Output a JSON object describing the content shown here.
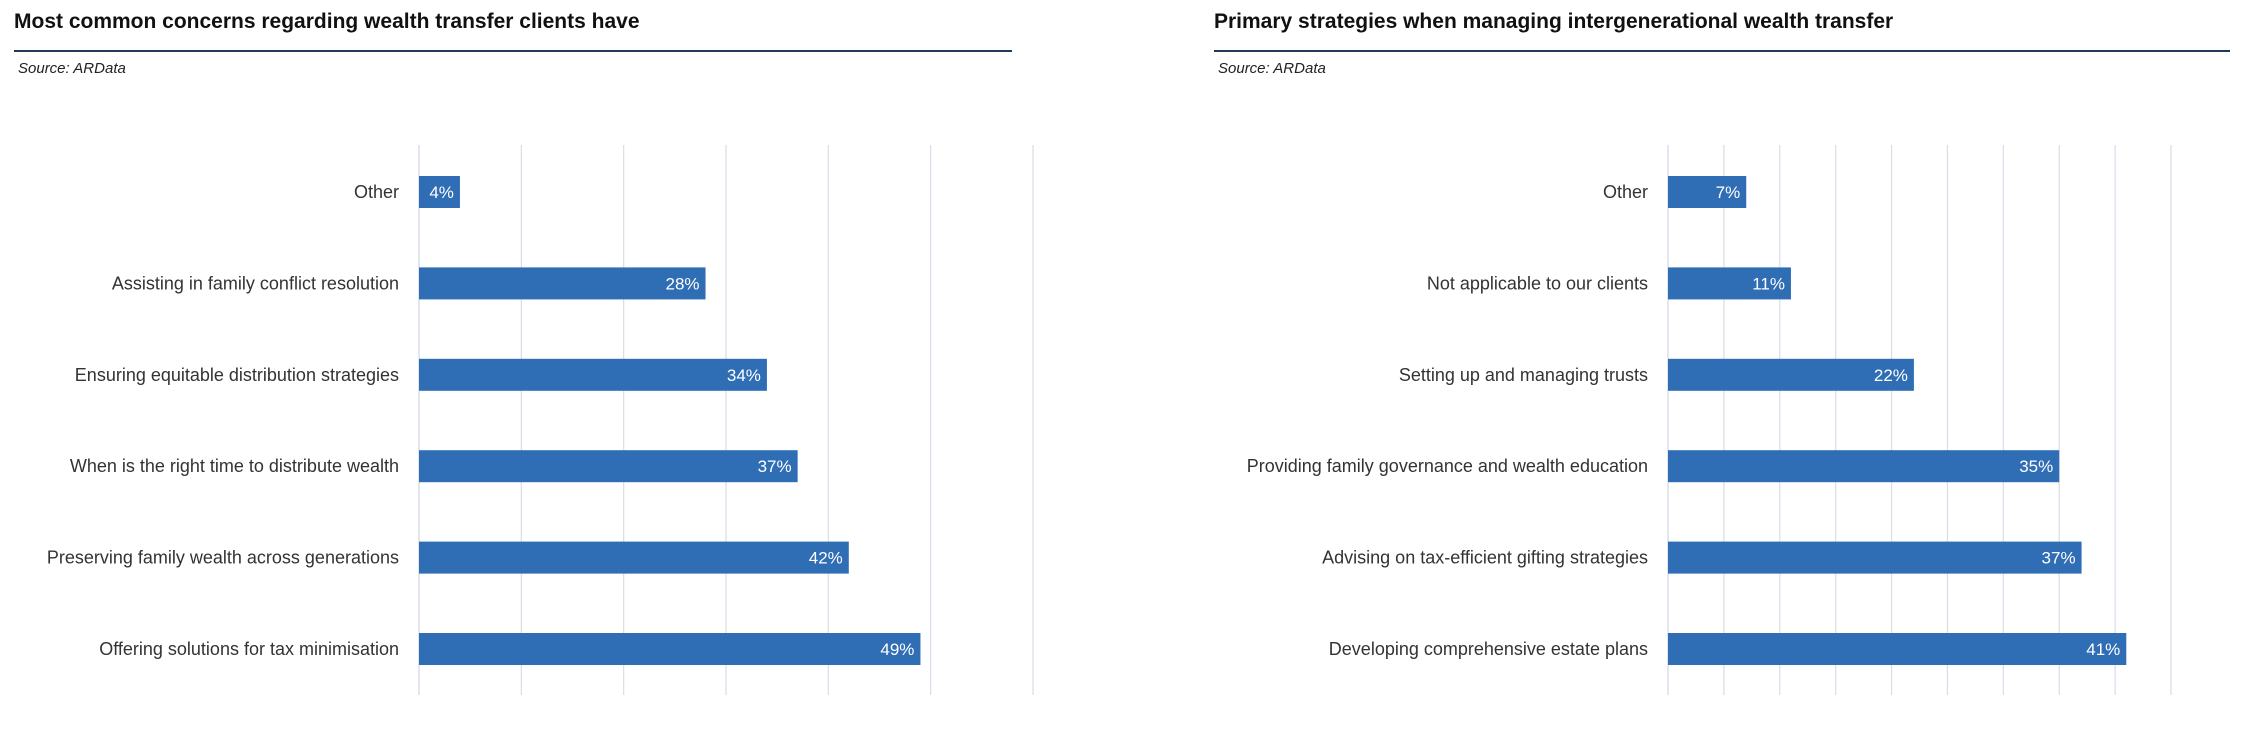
{
  "chart_data": [
    {
      "type": "bar",
      "orientation": "horizontal",
      "title": "Most common concerns regarding wealth transfer clients have",
      "source": "Source: ARData",
      "categories": [
        "Other",
        "Assisting in family conflict resolution",
        "Ensuring equitable distribution strategies",
        "When is the right time to distribute wealth",
        "Preserving family wealth across generations",
        "Offering solutions for tax minimisation"
      ],
      "values": [
        4,
        28,
        34,
        37,
        42,
        49
      ],
      "value_labels": [
        "4%",
        "28%",
        "34%",
        "37%",
        "42%",
        "49%"
      ],
      "xlim": [
        0,
        60
      ],
      "x_gridline_step": 10,
      "grid": true,
      "bar_color": "#2f6db5",
      "gridline_color": "#d9dde8"
    },
    {
      "type": "bar",
      "orientation": "horizontal",
      "title": "Primary strategies when managing intergenerational wealth transfer",
      "source": "Source: ARData",
      "categories": [
        "Other",
        "Not applicable to our clients",
        "Setting up and managing trusts",
        "Providing family governance and wealth education",
        "Advising on tax-efficient gifting strategies",
        "Developing comprehensive estate plans"
      ],
      "values": [
        7,
        11,
        22,
        35,
        37,
        41
      ],
      "value_labels": [
        "7%",
        "11%",
        "22%",
        "35%",
        "37%",
        "41%"
      ],
      "xlim": [
        0,
        45
      ],
      "x_gridline_step": 5,
      "grid": true,
      "bar_color": "#2f6db5",
      "gridline_color": "#d9dde8"
    }
  ]
}
